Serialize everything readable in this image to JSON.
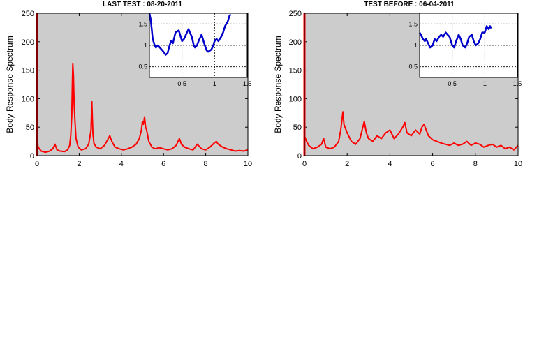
{
  "chart_data": [
    {
      "type": "line",
      "title": "LAST TEST : 08-20-2011",
      "xlabel": "",
      "ylabel": "Body Response Spectrum",
      "xlim": [
        0,
        10
      ],
      "ylim": [
        0,
        250
      ],
      "x_ticks": [
        "0",
        "2",
        "4",
        "6",
        "8",
        "10"
      ],
      "y_ticks": [
        "0",
        "50",
        "100",
        "150",
        "200",
        "250"
      ],
      "background": "#cccccc",
      "grid": false,
      "series": [
        {
          "color": "#ff0000",
          "x": [
            0,
            0.05,
            0.2,
            0.4,
            0.6,
            0.75,
            0.85,
            0.95,
            1.1,
            1.3,
            1.45,
            1.55,
            1.6,
            1.65,
            1.68,
            1.7,
            1.73,
            1.76,
            1.8,
            1.85,
            1.95,
            2.1,
            2.3,
            2.45,
            2.52,
            2.56,
            2.6,
            2.65,
            2.7,
            2.8,
            3.0,
            3.2,
            3.35,
            3.45,
            3.55,
            3.7,
            3.9,
            4.1,
            4.3,
            4.5,
            4.7,
            4.85,
            4.95,
            5.0,
            5.05,
            5.1,
            5.15,
            5.2,
            5.3,
            5.45,
            5.6,
            5.8,
            6.0,
            6.2,
            6.4,
            6.6,
            6.75,
            6.85,
            7.0,
            7.2,
            7.4,
            7.6,
            7.8,
            8.0,
            8.2,
            8.4,
            8.5,
            8.6,
            8.8,
            9.0,
            9.2,
            9.4,
            9.6,
            9.8,
            10
          ],
          "y": [
            30,
            15,
            8,
            6,
            8,
            12,
            20,
            10,
            8,
            7,
            10,
            18,
            35,
            70,
            130,
            162,
            140,
            90,
            60,
            30,
            15,
            10,
            12,
            20,
            35,
            45,
            95,
            40,
            22,
            15,
            12,
            18,
            28,
            35,
            25,
            15,
            12,
            10,
            12,
            15,
            20,
            30,
            45,
            60,
            55,
            68,
            50,
            45,
            25,
            15,
            12,
            14,
            12,
            10,
            12,
            18,
            30,
            20,
            15,
            12,
            10,
            20,
            12,
            10,
            15,
            22,
            25,
            20,
            15,
            12,
            10,
            8,
            9,
            8,
            10
          ]
        }
      ],
      "inset": {
        "xlim": [
          0,
          1.5
        ],
        "ylim": [
          0.25,
          1.75
        ],
        "x_ticks": [
          "0.5",
          "1",
          "1.5"
        ],
        "y_ticks": [
          "0.5",
          "1",
          "1.5"
        ],
        "background": "#ffffff",
        "grid": true,
        "series": [
          {
            "color": "#0000cc",
            "x": [
              0,
              0.02,
              0.05,
              0.08,
              0.1,
              0.13,
              0.16,
              0.2,
              0.25,
              0.28,
              0.3,
              0.33,
              0.36,
              0.4,
              0.45,
              0.48,
              0.5,
              0.53,
              0.56,
              0.6,
              0.65,
              0.68,
              0.7,
              0.73,
              0.76,
              0.8,
              0.85,
              0.88,
              0.9,
              0.95,
              0.98,
              1.0,
              1.03,
              1.06,
              1.1,
              1.13,
              1.16,
              1.2,
              1.23,
              1.25
            ],
            "y": [
              1.75,
              1.6,
              1.15,
              1.0,
              0.95,
              1.0,
              0.95,
              0.88,
              0.78,
              0.82,
              0.95,
              1.1,
              1.05,
              1.3,
              1.35,
              1.2,
              1.1,
              1.15,
              1.25,
              1.38,
              1.2,
              1.0,
              0.95,
              1.0,
              1.12,
              1.25,
              1.0,
              0.88,
              0.85,
              0.9,
              1.0,
              1.1,
              1.15,
              1.1,
              1.2,
              1.3,
              1.45,
              1.55,
              1.7,
              1.72
            ]
          }
        ]
      }
    },
    {
      "type": "line",
      "title": "TEST BEFORE : 06-04-2011",
      "xlabel": "",
      "ylabel": "Body Response Spectrum",
      "xlim": [
        0,
        10
      ],
      "ylim": [
        0,
        250
      ],
      "x_ticks": [
        "0",
        "2",
        "4",
        "6",
        "8",
        "10"
      ],
      "y_ticks": [
        "0",
        "50",
        "100",
        "150",
        "200",
        "250"
      ],
      "background": "#cccccc",
      "grid": false,
      "series": [
        {
          "color": "#ff0000",
          "x": [
            0,
            0.1,
            0.2,
            0.4,
            0.6,
            0.8,
            0.9,
            1.0,
            1.2,
            1.4,
            1.6,
            1.7,
            1.8,
            1.85,
            1.9,
            2.0,
            2.2,
            2.4,
            2.6,
            2.7,
            2.8,
            2.9,
            3.0,
            3.2,
            3.4,
            3.6,
            3.8,
            4.0,
            4.2,
            4.4,
            4.6,
            4.7,
            4.8,
            5.0,
            5.2,
            5.4,
            5.5,
            5.6,
            5.7,
            5.8,
            6.0,
            6.2,
            6.4,
            6.6,
            6.8,
            7.0,
            7.2,
            7.4,
            7.6,
            7.8,
            8.0,
            8.2,
            8.4,
            8.6,
            8.8,
            9.0,
            9.2,
            9.4,
            9.6,
            9.8,
            10
          ],
          "y": [
            35,
            25,
            18,
            12,
            15,
            20,
            30,
            15,
            12,
            15,
            25,
            45,
            77,
            55,
            50,
            40,
            25,
            20,
            30,
            45,
            60,
            40,
            30,
            25,
            35,
            30,
            40,
            45,
            30,
            38,
            50,
            58,
            40,
            35,
            45,
            38,
            50,
            55,
            45,
            35,
            28,
            25,
            22,
            20,
            18,
            22,
            18,
            20,
            25,
            18,
            22,
            20,
            15,
            18,
            20,
            15,
            18,
            12,
            15,
            10,
            18
          ]
        }
      ],
      "inset": {
        "xlim": [
          0,
          1.5
        ],
        "ylim": [
          0.25,
          1.75
        ],
        "x_ticks": [
          "0.5",
          "1",
          "1.5"
        ],
        "y_ticks": [
          "0.5",
          "1",
          "1.5"
        ],
        "background": "#ffffff",
        "grid": true,
        "series": [
          {
            "color": "#0000cc",
            "x": [
              0,
              0.02,
              0.05,
              0.08,
              0.1,
              0.13,
              0.16,
              0.2,
              0.23,
              0.26,
              0.3,
              0.33,
              0.36,
              0.4,
              0.43,
              0.46,
              0.5,
              0.53,
              0.56,
              0.6,
              0.63,
              0.66,
              0.7,
              0.73,
              0.76,
              0.8,
              0.83,
              0.86,
              0.9,
              0.93,
              0.96,
              1.0,
              1.03,
              1.06,
              1.08,
              1.1
            ],
            "y": [
              1.3,
              1.25,
              1.15,
              1.1,
              1.15,
              1.05,
              0.95,
              1.0,
              1.15,
              1.1,
              1.2,
              1.25,
              1.2,
              1.3,
              1.25,
              1.2,
              1.0,
              0.95,
              1.1,
              1.25,
              1.15,
              1.0,
              0.95,
              1.05,
              1.2,
              1.25,
              1.1,
              1.0,
              1.05,
              1.15,
              1.3,
              1.3,
              1.45,
              1.38,
              1.45,
              1.4
            ]
          }
        ]
      }
    }
  ]
}
